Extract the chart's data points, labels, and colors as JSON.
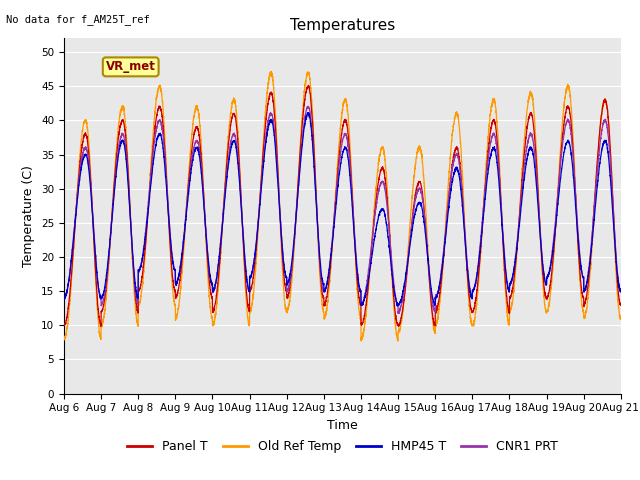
{
  "title": "Temperatures",
  "xlabel": "Time",
  "ylabel": "Temperature (C)",
  "top_left_text": "No data for f_AM25T_ref",
  "legend_label_text": "VR_met",
  "ylim": [
    0,
    52
  ],
  "yticks": [
    0,
    5,
    10,
    15,
    20,
    25,
    30,
    35,
    40,
    45,
    50
  ],
  "n_days": 15,
  "xtick_labels": [
    "Aug 6",
    "Aug 7",
    "Aug 8",
    "Aug 9",
    "Aug 10",
    "Aug 11",
    "Aug 12",
    "Aug 13",
    "Aug 14",
    "Aug 15",
    "Aug 16",
    "Aug 17",
    "Aug 18",
    "Aug 19",
    "Aug 20",
    "Aug 21"
  ],
  "series_colors": {
    "Panel T": "#cc0000",
    "Old Ref Temp": "#ff9900",
    "HMP45 T": "#0000cc",
    "CNR1 PRT": "#9933aa"
  },
  "background_color": "#e8e8e8",
  "grid_color": "#ffffff",
  "legend_box_color": "#ffff99",
  "legend_box_edge": "#aa8800",
  "title_fontsize": 11,
  "axis_fontsize": 9,
  "tick_fontsize": 7.5,
  "legend_fontsize": 9
}
